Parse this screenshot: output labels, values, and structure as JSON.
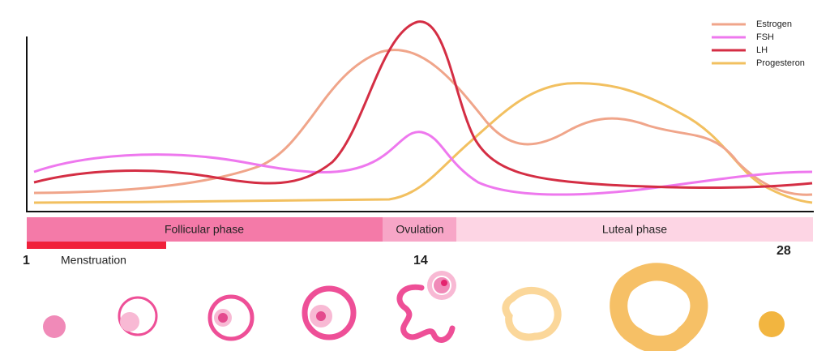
{
  "legend": {
    "items": [
      "Estrogen",
      "FSH",
      "LH",
      "Progesteron"
    ]
  },
  "phases": {
    "follicular": "Follicular phase",
    "ovulation": "Ovulation",
    "luteal": "Luteal phase",
    "menstruation": "Menstruation"
  },
  "days": {
    "start": 1,
    "ovulation": 14,
    "end": 28
  }
}
